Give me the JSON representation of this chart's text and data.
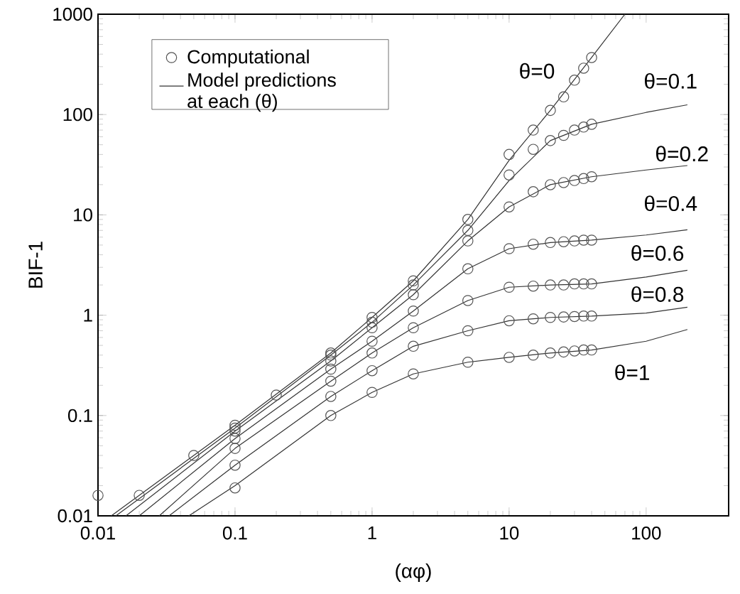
{
  "chart_data": {
    "type": "line",
    "xlabel": "(αφ)",
    "ylabel": "BIF-1",
    "log": "xy",
    "xlim": [
      0.01,
      400
    ],
    "ylim": [
      0.01,
      1000
    ],
    "xticks": [
      0.01,
      0.1,
      1,
      10,
      100
    ],
    "yticks": [
      0.01,
      0.1,
      1,
      10,
      100,
      1000
    ],
    "legend": "top left",
    "series": [
      {
        "name": "Computational",
        "type": "scatter",
        "marker": "circle",
        "color": "#555555",
        "x": [
          0.01,
          0.02,
          0.05,
          0.1,
          0.2,
          0.5,
          1,
          2,
          5,
          10,
          15,
          20,
          25,
          30,
          35,
          40,
          0.1,
          0.5,
          1,
          2,
          5,
          10,
          15,
          20,
          25,
          30,
          35,
          40,
          0.1,
          0.5,
          1,
          2,
          5,
          10,
          15,
          20,
          25,
          30,
          35,
          40,
          0.1,
          0.5,
          1,
          2,
          5,
          10,
          15,
          20,
          25,
          30,
          35,
          40,
          0.1,
          0.5,
          1,
          2,
          5,
          10,
          15,
          20,
          25,
          30,
          35,
          40,
          0.1,
          0.5,
          1,
          2,
          5,
          10,
          15,
          20,
          25,
          30,
          35,
          40,
          0.1,
          0.5,
          1,
          2,
          5,
          10,
          15,
          20,
          25,
          30,
          35,
          40
        ],
        "values": [
          0.016,
          0.016,
          0.04,
          0.08,
          0.16,
          0.42,
          0.95,
          2.2,
          9,
          40,
          70,
          110,
          150,
          220,
          290,
          370,
          0.075,
          0.4,
          0.85,
          2.0,
          7,
          25,
          45,
          55,
          62,
          70,
          75,
          80,
          0.07,
          0.35,
          0.75,
          1.6,
          5.5,
          12,
          17,
          20,
          21,
          22,
          23,
          24,
          0.059,
          0.29,
          0.55,
          1.1,
          2.9,
          4.6,
          5.1,
          5.3,
          5.4,
          5.5,
          5.6,
          5.6,
          0.047,
          0.22,
          0.42,
          0.75,
          1.4,
          1.9,
          1.95,
          2.0,
          2.0,
          2.05,
          2.05,
          2.05,
          0.032,
          0.155,
          0.28,
          0.49,
          0.7,
          0.88,
          0.92,
          0.95,
          0.96,
          0.97,
          0.98,
          0.98,
          0.019,
          0.1,
          0.17,
          0.26,
          0.34,
          0.38,
          0.4,
          0.42,
          0.43,
          0.44,
          0.45,
          0.45
        ]
      },
      {
        "name": "Model predictions\nat each (θ)",
        "color": "#333333",
        "x": [
          0.0125,
          0.1,
          0.5,
          1,
          2,
          5,
          10,
          20,
          40,
          70
        ],
        "values": [
          0.01,
          0.08,
          0.42,
          0.95,
          2.2,
          9,
          35,
          110,
          370,
          1000
        ]
      },
      {
        "color": "#333333",
        "x": [
          0.0135,
          0.1,
          0.5,
          1,
          2,
          5,
          10,
          20,
          40,
          100,
          200
        ],
        "values": [
          0.01,
          0.075,
          0.4,
          0.85,
          2.0,
          7,
          22,
          55,
          80,
          105,
          125
        ]
      },
      {
        "color": "#333333",
        "x": [
          0.016,
          0.1,
          0.5,
          1,
          2,
          5,
          10,
          20,
          40,
          100,
          200
        ],
        "values": [
          0.01,
          0.07,
          0.35,
          0.75,
          1.6,
          5.5,
          12,
          20,
          24,
          28,
          31
        ]
      },
      {
        "color": "#333333",
        "x": [
          0.02,
          0.1,
          0.5,
          1,
          2,
          5,
          10,
          20,
          40,
          100,
          200
        ],
        "values": [
          0.01,
          0.059,
          0.29,
          0.55,
          1.1,
          2.9,
          4.6,
          5.3,
          5.6,
          6.3,
          7.1
        ]
      },
      {
        "color": "#333333",
        "x": [
          0.028,
          0.1,
          0.5,
          1,
          2,
          5,
          10,
          20,
          40,
          100,
          200
        ],
        "values": [
          0.01,
          0.047,
          0.22,
          0.42,
          0.75,
          1.4,
          1.9,
          2.0,
          2.05,
          2.4,
          2.8
        ]
      },
      {
        "color": "#333333",
        "x": [
          0.033,
          0.1,
          0.5,
          1,
          2,
          5,
          10,
          20,
          40,
          100,
          200
        ],
        "values": [
          0.01,
          0.032,
          0.155,
          0.28,
          0.49,
          0.7,
          0.88,
          0.95,
          0.98,
          1.05,
          1.2
        ]
      },
      {
        "color": "#333333",
        "x": [
          0.046,
          0.1,
          0.5,
          1,
          2,
          5,
          10,
          20,
          40,
          100,
          200
        ],
        "values": [
          0.01,
          0.02,
          0.1,
          0.17,
          0.26,
          0.34,
          0.38,
          0.42,
          0.45,
          0.55,
          0.72
        ]
      }
    ],
    "annotations": [
      "θ=0",
      "θ=0.1",
      "θ=0.2",
      "θ=0.4",
      "θ=0.6",
      "θ=0.8",
      "θ=1"
    ]
  }
}
